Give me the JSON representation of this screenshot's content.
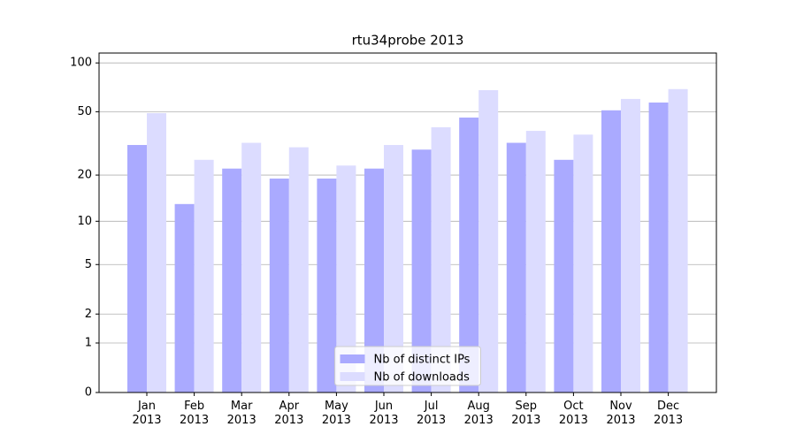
{
  "chart_data": {
    "type": "bar",
    "title": "rtu34probe 2013",
    "categories": [
      "Jan\n2013",
      "Feb\n2013",
      "Mar\n2013",
      "Apr\n2013",
      "May\n2013",
      "Jun\n2013",
      "Jul\n2013",
      "Aug\n2013",
      "Sep\n2013",
      "Oct\n2013",
      "Nov\n2013",
      "Dec\n2013"
    ],
    "series": [
      {
        "name": "Nb of distinct IPs",
        "color": "#aaaaff",
        "values": [
          31,
          13,
          22,
          19,
          19,
          22,
          29,
          46,
          32,
          25,
          51,
          57
        ]
      },
      {
        "name": "Nb of downloads",
        "color": "#dcdcff",
        "values": [
          49,
          25,
          32,
          30,
          23,
          31,
          40,
          68,
          38,
          36,
          60,
          69
        ]
      }
    ],
    "yscale": "log1p",
    "ylim": [
      0,
      115
    ],
    "yticks": [
      0,
      1,
      2,
      5,
      10,
      20,
      50,
      100
    ],
    "grid": true,
    "legend": "lower center"
  }
}
